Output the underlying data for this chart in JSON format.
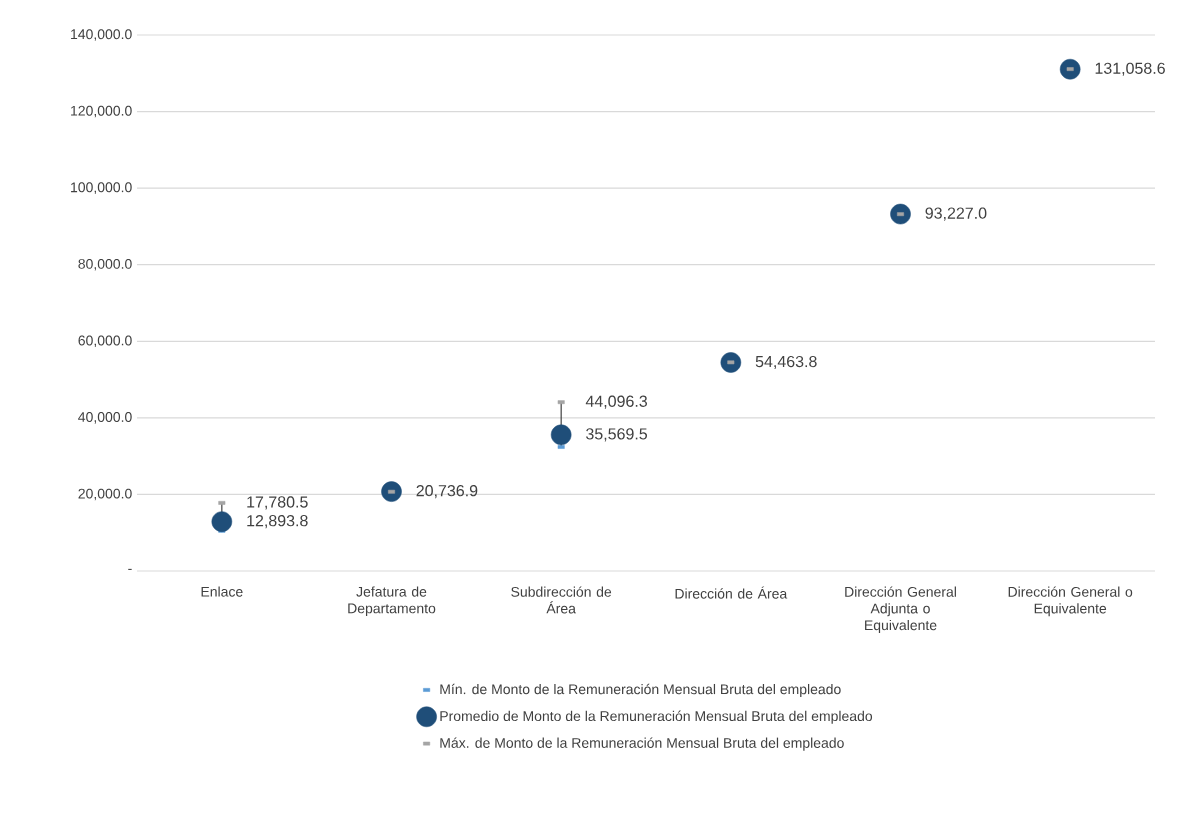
{
  "chart_data": {
    "type": "scatter",
    "categories": [
      "Enlace",
      "Jefatura de Departamento",
      "Subdirección de Área",
      "Dirección de Área",
      "Dirección General Adjunta o Equivalente",
      "Dirección General o Equivalente"
    ],
    "series": [
      {
        "name": "Mín. de Monto de la Remuneración Mensual Bruta del empleado",
        "color": "#5b9bd5",
        "marker": "square",
        "values": [
          10500,
          null,
          32400,
          null,
          null,
          null
        ]
      },
      {
        "name": "Promedio de Monto de la Remuneración Mensual Bruta del empleado",
        "color": "#1f4e79",
        "marker": "circle",
        "values": [
          12893.8,
          20736.9,
          35569.5,
          54463.8,
          93227.0,
          131058.6
        ],
        "value_labels": [
          "12,893.8",
          "20,736.9",
          "35,569.5",
          "54,463.8",
          "93,227.0",
          "131,058.6"
        ]
      },
      {
        "name": "Máx. de Monto de la Remuneración Mensual Bruta del empleado",
        "color": "#a5a5a5",
        "marker": "square",
        "values": [
          17780.5,
          20700,
          44096.3,
          54500,
          93200,
          131100
        ],
        "value_labels": [
          "17,780.5",
          null,
          "44,096.3",
          null,
          null,
          null
        ]
      }
    ],
    "ylim": [
      0,
      140000
    ],
    "yticks": [
      {
        "value": 0,
        "label": "-"
      },
      {
        "value": 20000,
        "label": "20,000.0"
      },
      {
        "value": 40000,
        "label": "40,000.0"
      },
      {
        "value": 60000,
        "label": "60,000.0"
      },
      {
        "value": 80000,
        "label": "80,000.0"
      },
      {
        "value": 100000,
        "label": "100,000.0"
      },
      {
        "value": 120000,
        "label": "120,000.0"
      },
      {
        "value": 140000,
        "label": "140,000.0"
      }
    ],
    "grid": "y",
    "legend": "bottom"
  }
}
